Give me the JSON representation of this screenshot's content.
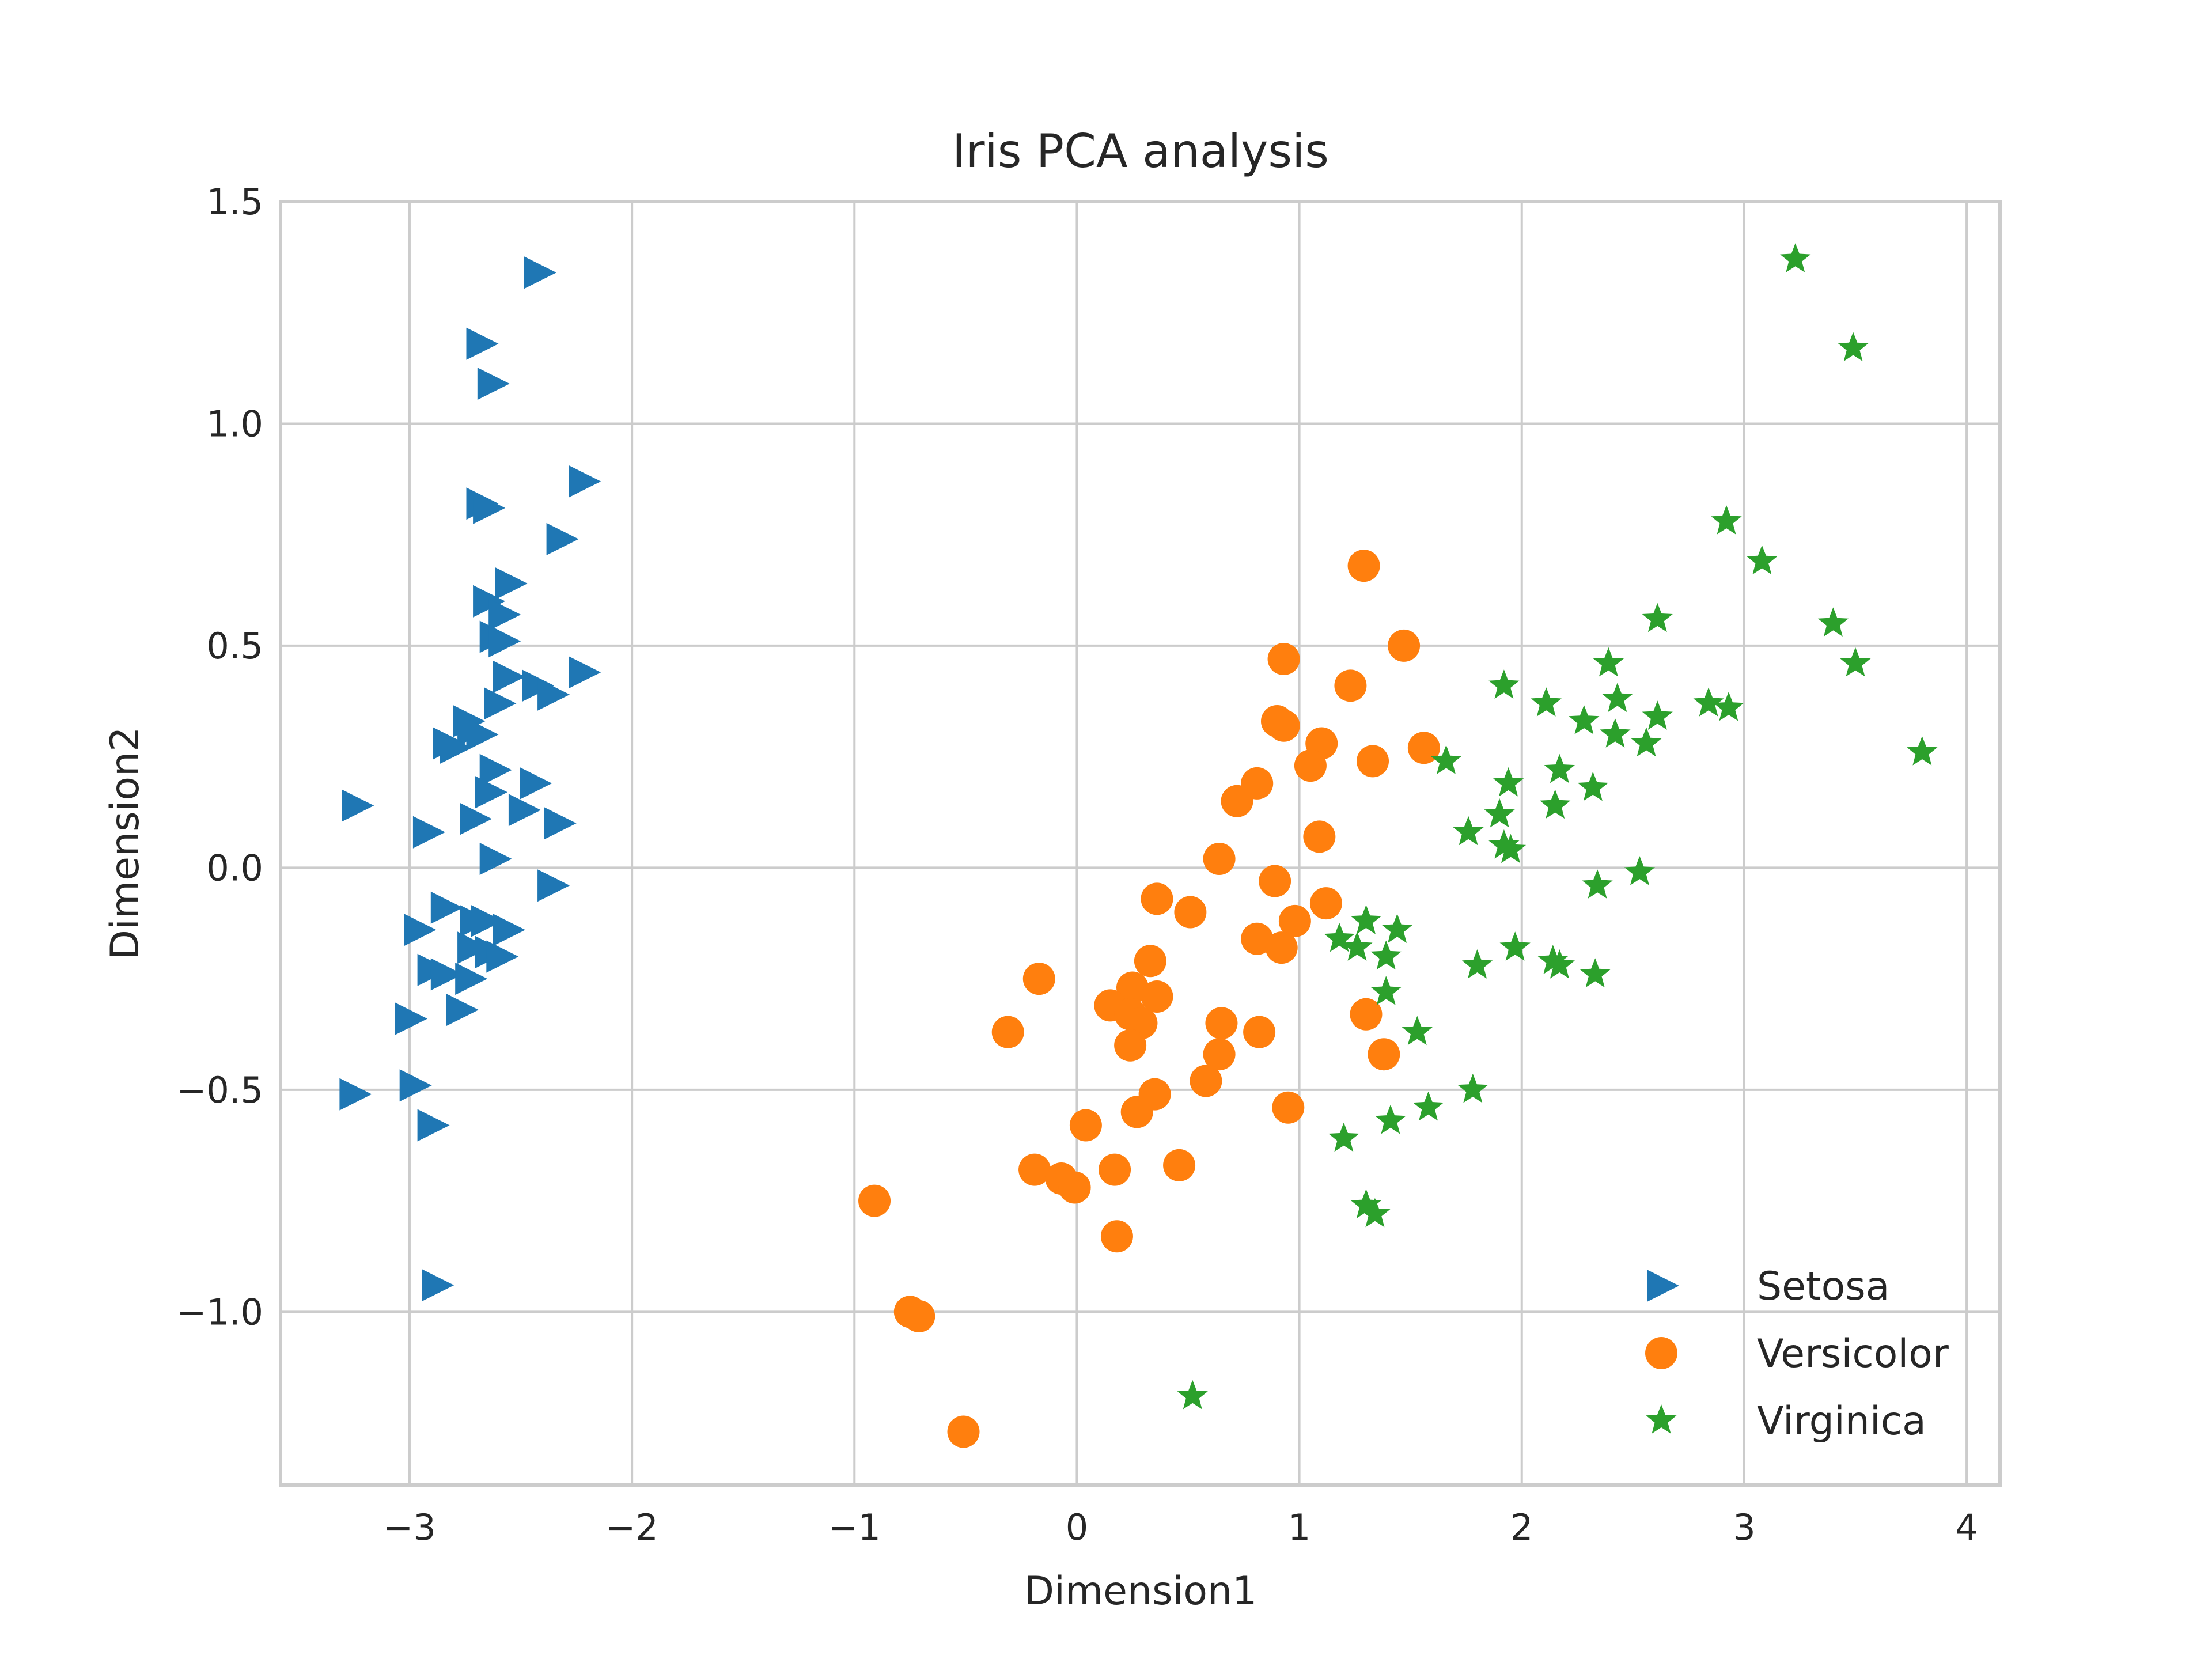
{
  "chart_data": {
    "type": "scatter",
    "title": "Iris PCA analysis",
    "xlabel": "Dimension1",
    "ylabel": "Dimension2",
    "xlim": [
      -3.58,
      4.15
    ],
    "ylim": [
      -1.39,
      1.5
    ],
    "xticks": [
      -3,
      -2,
      -1,
      0,
      1,
      2,
      3,
      4
    ],
    "xtick_labels": [
      "−3",
      "−2",
      "−1",
      "0",
      "1",
      "2",
      "3",
      "4"
    ],
    "yticks": [
      -1.0,
      -0.5,
      0.0,
      0.5,
      1.0,
      1.5
    ],
    "ytick_labels": [
      "−1.0",
      "−0.5",
      "0.0",
      "0.5",
      "1.0",
      "1.5"
    ],
    "grid": true,
    "legend_position": "bottom-right",
    "series": [
      {
        "name": "Setosa",
        "marker": "triangle-right",
        "color": "#1f77b4",
        "points": [
          [
            -2.42,
            1.34
          ],
          [
            -2.68,
            1.18
          ],
          [
            -2.63,
            1.09
          ],
          [
            -2.22,
            0.87
          ],
          [
            -2.68,
            0.82
          ],
          [
            -2.65,
            0.81
          ],
          [
            -2.32,
            0.74
          ],
          [
            -2.55,
            0.64
          ],
          [
            -2.65,
            0.6
          ],
          [
            -2.58,
            0.57
          ],
          [
            -2.62,
            0.52
          ],
          [
            -2.58,
            0.51
          ],
          [
            -2.22,
            0.44
          ],
          [
            -2.56,
            0.43
          ],
          [
            -2.43,
            0.41
          ],
          [
            -2.36,
            0.39
          ],
          [
            -2.74,
            0.33
          ],
          [
            -2.6,
            0.37
          ],
          [
            -2.72,
            0.31
          ],
          [
            -2.68,
            0.3
          ],
          [
            -2.83,
            0.28
          ],
          [
            -2.8,
            0.27
          ],
          [
            -2.62,
            0.22
          ],
          [
            -2.44,
            0.19
          ],
          [
            -2.64,
            0.17
          ],
          [
            -3.24,
            0.14
          ],
          [
            -2.49,
            0.13
          ],
          [
            -2.71,
            0.11
          ],
          [
            -2.33,
            0.1
          ],
          [
            -2.92,
            0.08
          ],
          [
            -2.62,
            0.02
          ],
          [
            -2.36,
            -0.04
          ],
          [
            -2.84,
            -0.09
          ],
          [
            -2.71,
            -0.12
          ],
          [
            -2.66,
            -0.12
          ],
          [
            -2.96,
            -0.14
          ],
          [
            -2.56,
            -0.14
          ],
          [
            -2.72,
            -0.18
          ],
          [
            -2.64,
            -0.19
          ],
          [
            -2.59,
            -0.2
          ],
          [
            -2.9,
            -0.23
          ],
          [
            -2.84,
            -0.24
          ],
          [
            -2.73,
            -0.25
          ],
          [
            -3.0,
            -0.34
          ],
          [
            -2.77,
            -0.32
          ],
          [
            -3.25,
            -0.51
          ],
          [
            -2.98,
            -0.49
          ],
          [
            -2.9,
            -0.58
          ],
          [
            -2.88,
            -0.94
          ]
        ]
      },
      {
        "name": "Versicolor",
        "marker": "circle",
        "color": "#ff7f0e",
        "points": [
          [
            1.29,
            0.68
          ],
          [
            1.47,
            0.5
          ],
          [
            0.93,
            0.47
          ],
          [
            1.23,
            0.41
          ],
          [
            0.9,
            0.33
          ],
          [
            0.93,
            0.32
          ],
          [
            1.1,
            0.28
          ],
          [
            1.56,
            0.27
          ],
          [
            1.33,
            0.24
          ],
          [
            1.05,
            0.23
          ],
          [
            0.81,
            0.19
          ],
          [
            0.72,
            0.15
          ],
          [
            1.09,
            0.07
          ],
          [
            0.64,
            0.02
          ],
          [
            0.89,
            -0.03
          ],
          [
            0.36,
            -0.07
          ],
          [
            1.12,
            -0.08
          ],
          [
            0.51,
            -0.1
          ],
          [
            0.98,
            -0.12
          ],
          [
            0.81,
            -0.16
          ],
          [
            0.92,
            -0.18
          ],
          [
            0.33,
            -0.21
          ],
          [
            -0.17,
            -0.25
          ],
          [
            0.25,
            -0.27
          ],
          [
            0.36,
            -0.29
          ],
          [
            0.15,
            -0.31
          ],
          [
            0.24,
            -0.33
          ],
          [
            0.29,
            -0.35
          ],
          [
            1.3,
            -0.33
          ],
          [
            0.65,
            -0.35
          ],
          [
            -0.31,
            -0.37
          ],
          [
            0.82,
            -0.37
          ],
          [
            0.24,
            -0.4
          ],
          [
            1.38,
            -0.42
          ],
          [
            0.64,
            -0.42
          ],
          [
            0.58,
            -0.48
          ],
          [
            0.35,
            -0.51
          ],
          [
            0.95,
            -0.54
          ],
          [
            0.27,
            -0.55
          ],
          [
            0.04,
            -0.58
          ],
          [
            -0.19,
            -0.68
          ],
          [
            0.17,
            -0.68
          ],
          [
            0.46,
            -0.67
          ],
          [
            -0.07,
            -0.7
          ],
          [
            -0.01,
            -0.72
          ],
          [
            -0.91,
            -0.75
          ],
          [
            0.18,
            -0.83
          ],
          [
            -0.75,
            -1.0
          ],
          [
            -0.71,
            -1.01
          ],
          [
            -0.51,
            -1.27
          ]
        ]
      },
      {
        "name": "Virginica",
        "marker": "star",
        "color": "#2ca02c",
        "points": [
          [
            3.23,
            1.37
          ],
          [
            3.49,
            1.17
          ],
          [
            2.92,
            0.78
          ],
          [
            3.08,
            0.69
          ],
          [
            2.61,
            0.56
          ],
          [
            3.4,
            0.55
          ],
          [
            3.5,
            0.46
          ],
          [
            2.39,
            0.46
          ],
          [
            1.92,
            0.41
          ],
          [
            2.43,
            0.38
          ],
          [
            2.11,
            0.37
          ],
          [
            2.84,
            0.37
          ],
          [
            2.93,
            0.36
          ],
          [
            2.61,
            0.34
          ],
          [
            2.28,
            0.33
          ],
          [
            2.42,
            0.3
          ],
          [
            2.56,
            0.28
          ],
          [
            3.8,
            0.26
          ],
          [
            1.66,
            0.24
          ],
          [
            2.17,
            0.22
          ],
          [
            1.94,
            0.19
          ],
          [
            2.32,
            0.18
          ],
          [
            2.15,
            0.14
          ],
          [
            1.9,
            0.12
          ],
          [
            1.76,
            0.08
          ],
          [
            1.92,
            0.05
          ],
          [
            1.95,
            0.04
          ],
          [
            2.53,
            -0.01
          ],
          [
            2.34,
            -0.04
          ],
          [
            1.3,
            -0.12
          ],
          [
            1.44,
            -0.14
          ],
          [
            1.18,
            -0.16
          ],
          [
            1.26,
            -0.18
          ],
          [
            1.97,
            -0.18
          ],
          [
            1.39,
            -0.2
          ],
          [
            1.8,
            -0.22
          ],
          [
            2.14,
            -0.21
          ],
          [
            2.17,
            -0.22
          ],
          [
            2.33,
            -0.24
          ],
          [
            1.39,
            -0.28
          ],
          [
            1.53,
            -0.37
          ],
          [
            1.78,
            -0.5
          ],
          [
            1.58,
            -0.54
          ],
          [
            1.41,
            -0.57
          ],
          [
            1.2,
            -0.61
          ],
          [
            1.3,
            -0.76
          ],
          [
            1.34,
            -0.78
          ],
          [
            0.52,
            -1.19
          ]
        ]
      }
    ]
  }
}
